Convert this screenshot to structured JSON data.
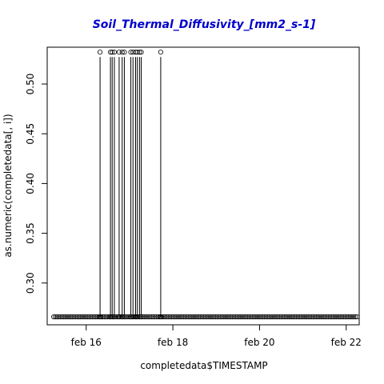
{
  "chart_data": {
    "type": "scatter",
    "title": "Soil_Thermal_Diffusivity_[mm2_s-1]",
    "xlabel": "completedata$TIMESTAMP",
    "ylabel": "as.numeric(completedata[, i])",
    "x_axis": {
      "unit": "day of February",
      "range": [
        15.1,
        22.3
      ],
      "ticks": [
        16,
        18,
        20,
        22
      ],
      "tick_labels": [
        "feb 16",
        "feb 18",
        "feb 20",
        "feb 22"
      ]
    },
    "y_axis": {
      "range": [
        0.258,
        0.537
      ],
      "ticks": [
        0.3,
        0.35,
        0.4,
        0.45,
        0.5
      ],
      "tick_labels": [
        "0.30",
        "0.35",
        "0.40",
        "0.45",
        "0.50"
      ]
    },
    "baseline_value": 0.266,
    "baseline_x_range": [
      15.25,
      22.25
    ],
    "spike_value": 0.532,
    "spikes_x": [
      16.32,
      16.56,
      16.6,
      16.65,
      16.76,
      16.83,
      16.88,
      17.03,
      17.08,
      17.14,
      17.18,
      17.23,
      17.27,
      17.72
    ],
    "grid": false,
    "legend": "none"
  }
}
